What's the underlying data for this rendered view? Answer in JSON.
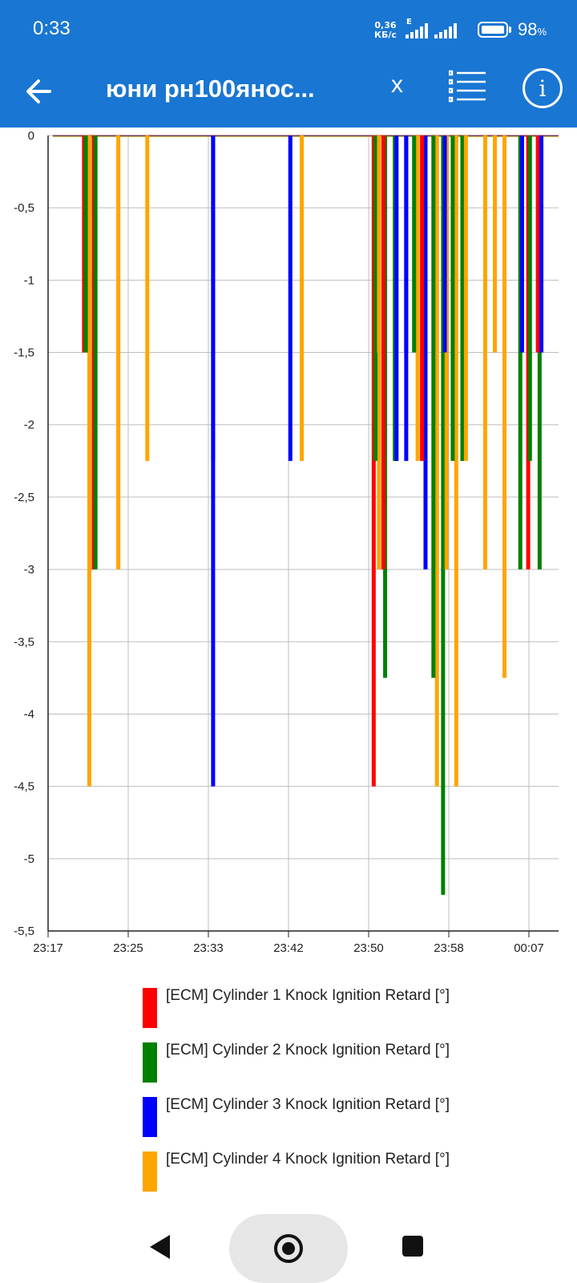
{
  "status_bar": {
    "time": "0:33",
    "net_speed_value": "0,36",
    "net_speed_unit": "КБ/с",
    "network_type": "E",
    "battery_percent": "98",
    "battery_unit": "%",
    "icons": [
      "signal-icon",
      "signal-icon",
      "battery-icon"
    ]
  },
  "app_bar": {
    "title": "юни рн100янос...",
    "close_label": "x",
    "icons": [
      "back-arrow-icon",
      "list-icon",
      "info-icon"
    ],
    "color": "#1976D2"
  },
  "chart_data": {
    "type": "bar",
    "ylim": [
      -5.5,
      0
    ],
    "y_ticks": [
      "0",
      "-0,5",
      "-1",
      "-1,5",
      "-2",
      "-2,5",
      "-3",
      "-3,5",
      "-4",
      "-4,5",
      "-5",
      "-5,5"
    ],
    "x_ticks": [
      "23:17",
      "23:25",
      "23:33",
      "23:42",
      "23:50",
      "23:58",
      "00:07"
    ],
    "grid": true,
    "legend_placement": "bottom",
    "series": [
      {
        "name": "[ECM] Cylinder 1 Knock Ignition Retard [°]",
        "color": "#ff0000",
        "values": [
          {
            "x": "23:21",
            "y": -1.5
          },
          {
            "x": "23:22",
            "y": -3
          },
          {
            "x": "23:51",
            "y": -4.5
          },
          {
            "x": "23:52",
            "y": -3
          },
          {
            "x": "23:56",
            "y": -2.25
          },
          {
            "x": "00:07",
            "y": -3
          },
          {
            "x": "00:08",
            "y": -1.5
          }
        ]
      },
      {
        "name": "[ECM] Cylinder 2 Knock Ignition Retard [°]",
        "color": "#008000",
        "values": [
          {
            "x": "23:21",
            "y": -1.5
          },
          {
            "x": "23:22",
            "y": -3
          },
          {
            "x": "23:51",
            "y": -2.25
          },
          {
            "x": "23:52",
            "y": -3.75
          },
          {
            "x": "23:53",
            "y": -2.25
          },
          {
            "x": "23:55",
            "y": -1.5
          },
          {
            "x": "23:57",
            "y": -3.75
          },
          {
            "x": "23:58",
            "y": -5.25
          },
          {
            "x": "23:59",
            "y": -2.25
          },
          {
            "x": "00:00",
            "y": -2.25
          },
          {
            "x": "00:06",
            "y": -3
          },
          {
            "x": "00:07",
            "y": -2.25
          },
          {
            "x": "00:08",
            "y": -3
          }
        ]
      },
      {
        "name": "[ECM] Cylinder 3 Knock Ignition Retard [°]",
        "color": "#0000ff",
        "values": [
          {
            "x": "23:34",
            "y": -4.5
          },
          {
            "x": "23:34",
            "y": -2.25
          },
          {
            "x": "23:42",
            "y": -2.25
          },
          {
            "x": "23:53",
            "y": -2.25
          },
          {
            "x": "23:54",
            "y": -1.5
          },
          {
            "x": "23:54",
            "y": -2.25
          },
          {
            "x": "23:56",
            "y": -3
          },
          {
            "x": "23:58",
            "y": -1.5
          },
          {
            "x": "00:06",
            "y": -1.5
          },
          {
            "x": "00:08",
            "y": -1.5
          }
        ]
      },
      {
        "name": "[ECM] Cylinder 4 Knock Ignition Retard [°]",
        "color": "#FFA500",
        "values": [
          {
            "x": "23:21",
            "y": -4.5
          },
          {
            "x": "23:24",
            "y": -3
          },
          {
            "x": "23:27",
            "y": -2.25
          },
          {
            "x": "23:43",
            "y": -2.25
          },
          {
            "x": "23:51",
            "y": -3
          },
          {
            "x": "23:51",
            "y": -1.5
          },
          {
            "x": "23:55",
            "y": -2.25
          },
          {
            "x": "23:57",
            "y": -4.5
          },
          {
            "x": "23:58",
            "y": -3
          },
          {
            "x": "23:59",
            "y": -4.5
          },
          {
            "x": "00:00",
            "y": -2.25
          },
          {
            "x": "00:02",
            "y": -3
          },
          {
            "x": "00:03",
            "y": -1.5
          },
          {
            "x": "00:04",
            "y": -3.75
          }
        ]
      }
    ]
  },
  "nav_bar": {
    "icons": [
      "back-triangle-icon",
      "home-circle-icon",
      "recents-square-icon"
    ]
  }
}
